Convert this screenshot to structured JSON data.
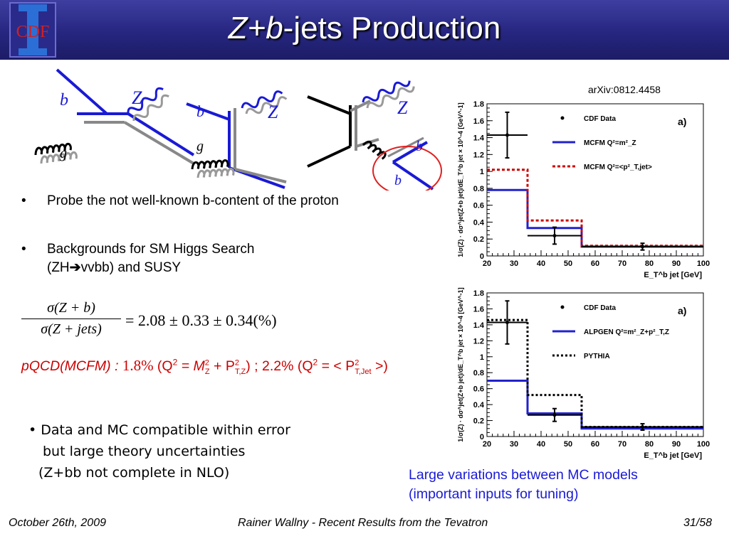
{
  "header": {
    "title_italic": "Z+b",
    "title_rest": "-jets Production",
    "logo_text": "CDF"
  },
  "diagrams": {
    "d1": {
      "quark": "b",
      "boson": "Z",
      "gluon": "g"
    },
    "d2": {
      "quark": "b",
      "boson": "Z",
      "gluon": "g"
    },
    "d3": {
      "boson": "Z",
      "quark1": "b",
      "quark2": "b"
    }
  },
  "bullets": [
    {
      "text": "Probe the not well-known b-content of the proton"
    },
    {
      "text_a": "Backgrounds for SM Higgs Search",
      "text_b": "(ZH",
      "text_c": "vvbb) and SUSY"
    }
  ],
  "formula1": {
    "num": "σ(Z + b)",
    "den": "σ(Z + jets)",
    "rhs": "= 2.08 ± 0.33 ± 0.34(%)"
  },
  "formula2": {
    "pqcd": "pQCD(MCFM) : ",
    "v1": "1.8% ",
    "q1a": "(Q",
    "q1b": "2",
    "q1c": " = M",
    "q1d": "2",
    "q1e": "Z",
    "q1f": " + P",
    "q1g": "2",
    "q1h": "T,Z",
    "q1i": ") ; 2.2% (Q",
    "q1j": "2",
    "q1k": " = < P",
    "q1l": "2",
    "q1m": "T,Jet",
    "q1n": " >)"
  },
  "conclusion": {
    "line1": "• Data and MC compatible within error",
    "line2": "but large theory uncertainties",
    "line3": "(Z+bb not complete in NLO)"
  },
  "arxiv": "arXiv:0812.4458",
  "caption": {
    "line1": "Large variations between MC models",
    "line2": "(important inputs for tuning)"
  },
  "footer": {
    "date": "October 26th, 2009",
    "center": "Rainer Wallny - Recent Results from the Tevatron",
    "page": "31/58"
  },
  "chart_data": [
    {
      "type": "histogram",
      "panel_label": "a)",
      "ylabel": "1/σ(Z) · dσ^jet(Z+b jet)/dE_T^b jet × 10^-4 [GeV^-1]",
      "xlabel": "E_T^b jet [GeV]",
      "xlim": [
        20,
        100
      ],
      "ylim": [
        0,
        1.8
      ],
      "xticks": [
        20,
        30,
        40,
        50,
        60,
        70,
        80,
        90,
        100
      ],
      "yticks": [
        0,
        0.2,
        0.4,
        0.6,
        0.8,
        1,
        1.2,
        1.4,
        1.6,
        1.8
      ],
      "bin_edges": [
        20,
        35,
        55,
        100
      ],
      "legend": [
        "CDF Data",
        "MCFM  Q²=m²_Z",
        "MCFM  Q²=<p²_T,jet>"
      ],
      "series": [
        {
          "name": "CDF Data",
          "x": [
            27.5,
            45,
            77.5
          ],
          "y": [
            1.43,
            0.24,
            0.11
          ],
          "yerr": [
            0.27,
            0.1,
            0.04
          ],
          "xerr": [
            7.5,
            10,
            22.5
          ],
          "color": "#000000"
        },
        {
          "name": "MCFM  Q²=m²_Z",
          "values": [
            0.78,
            0.33,
            0.11
          ],
          "color": "#2222cc"
        },
        {
          "name": "MCFM  Q²=<p²_T,jet>",
          "values": [
            1.02,
            0.42,
            0.12
          ],
          "color": "#cc0000"
        }
      ]
    },
    {
      "type": "histogram",
      "panel_label": "a)",
      "ylabel": "1/σ(Z) · dσ^jet(Z+b jet)/dE_T^b jet × 10^-4 [GeV^-1]",
      "xlabel": "E_T^b jet [GeV]",
      "xlim": [
        20,
        100
      ],
      "ylim": [
        0,
        1.8
      ],
      "xticks": [
        20,
        30,
        40,
        50,
        60,
        70,
        80,
        90,
        100
      ],
      "yticks": [
        0,
        0.2,
        0.4,
        0.6,
        0.8,
        1,
        1.2,
        1.4,
        1.6,
        1.8
      ],
      "bin_edges": [
        20,
        35,
        55,
        100
      ],
      "legend": [
        "CDF Data",
        "ALPGEN Q²=m²_Z+p²_T,Z",
        "PYTHIA"
      ],
      "series": [
        {
          "name": "CDF Data",
          "x": [
            27.5,
            45,
            77.5
          ],
          "y": [
            1.43,
            0.27,
            0.12
          ],
          "yerr": [
            0.27,
            0.08,
            0.04
          ],
          "xerr": [
            7.5,
            10,
            22.5
          ],
          "color": "#000000"
        },
        {
          "name": "ALPGEN Q²=m²_Z+p²_T,Z",
          "values": [
            0.7,
            0.29,
            0.1
          ],
          "color": "#2222cc"
        },
        {
          "name": "PYTHIA",
          "values": [
            1.46,
            0.52,
            0.12
          ],
          "color": "#000000"
        }
      ]
    }
  ]
}
